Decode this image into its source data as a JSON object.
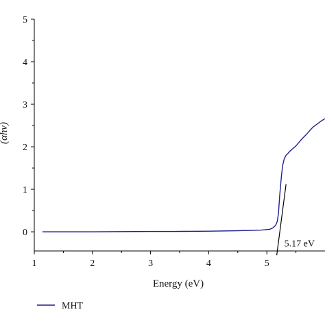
{
  "colors": {
    "series": "#1f1f8f",
    "fit_line": "#000000",
    "axis": "#000000",
    "background": "#ffffff"
  },
  "chart_data": {
    "type": "line",
    "title": "",
    "xlabel": "Energy (eV)",
    "ylabel": "(αhν)",
    "xlim": [
      1,
      6.0
    ],
    "ylim": [
      -0.45,
      5
    ],
    "xticks": [
      1,
      2,
      3,
      4,
      5
    ],
    "yticks": [
      0,
      1,
      2,
      3,
      4,
      5
    ],
    "grid": false,
    "legend_position": "bottom-left",
    "series": [
      {
        "name": "MHT",
        "x": [
          1.14,
          1.5,
          2.0,
          2.5,
          3.0,
          3.5,
          4.0,
          4.5,
          4.9,
          5.05,
          5.1,
          5.15,
          5.18,
          5.2,
          5.22,
          5.25,
          5.27,
          5.3,
          5.33,
          5.36,
          5.38,
          5.4,
          5.45,
          5.5,
          5.55,
          5.6,
          5.65,
          5.7,
          5.75,
          5.8,
          5.85,
          5.9,
          5.95,
          6.0
        ],
        "y": [
          0.0,
          0.0,
          0.0,
          0.005,
          0.008,
          0.01,
          0.015,
          0.025,
          0.04,
          0.06,
          0.09,
          0.15,
          0.25,
          0.45,
          0.85,
          1.3,
          1.55,
          1.72,
          1.8,
          1.84,
          1.87,
          1.9,
          1.96,
          2.02,
          2.1,
          2.18,
          2.25,
          2.32,
          2.4,
          2.47,
          2.52,
          2.57,
          2.62,
          2.66
        ]
      }
    ],
    "fit_line": {
      "x": [
        5.17,
        5.33
      ],
      "y": [
        -0.55,
        1.12
      ]
    },
    "annotations": [
      {
        "text": "5.17 eV",
        "x": 5.17,
        "y": -0.3
      }
    ]
  }
}
